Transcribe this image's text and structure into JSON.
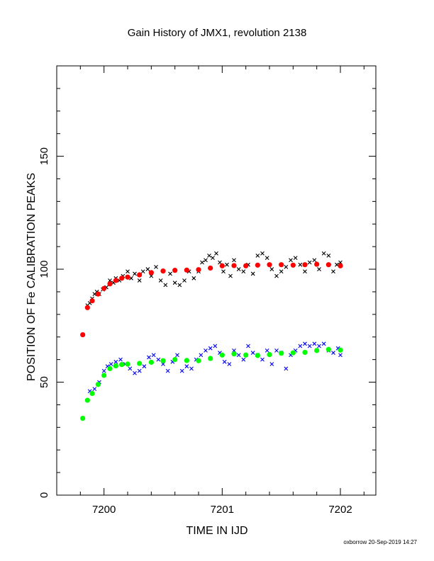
{
  "chart_data": {
    "type": "scatter",
    "title": "Gain History of JMX1, revolution 2138",
    "xlabel": "TIME IN IJD",
    "ylabel": "POSITION OF Fe CALIBRATION PEAKS",
    "footer": "oxborrow 20-Sep-2019 14:27",
    "xlim": [
      7199.6,
      7202.3
    ],
    "ylim": [
      0,
      190
    ],
    "x_ticks": [
      {
        "value": 7200,
        "label": "7200"
      },
      {
        "value": 7201,
        "label": "7201"
      },
      {
        "value": 7202,
        "label": "7202"
      }
    ],
    "y_ticks": [
      {
        "value": 0,
        "label": "0"
      },
      {
        "value": 50,
        "label": "50"
      },
      {
        "value": 100,
        "label": "100"
      },
      {
        "value": 150,
        "label": "150"
      }
    ],
    "grid": false,
    "legend": "none",
    "series": [
      {
        "color": "#000000",
        "marker": "x",
        "points": [
          [
            7199.86,
            84
          ],
          [
            7199.88,
            85
          ],
          [
            7199.9,
            87
          ],
          [
            7199.92,
            89
          ],
          [
            7199.94,
            90
          ],
          [
            7199.96,
            89
          ],
          [
            7199.99,
            91
          ],
          [
            7200.02,
            92
          ],
          [
            7200.05,
            95
          ],
          [
            7200.08,
            94
          ],
          [
            7200.1,
            96
          ],
          [
            7200.13,
            95
          ],
          [
            7200.16,
            97
          ],
          [
            7200.2,
            99
          ],
          [
            7200.23,
            96
          ],
          [
            7200.26,
            98
          ],
          [
            7200.3,
            95
          ],
          [
            7200.33,
            99
          ],
          [
            7200.37,
            100
          ],
          [
            7200.4,
            97
          ],
          [
            7200.44,
            101
          ],
          [
            7200.48,
            95
          ],
          [
            7200.52,
            93
          ],
          [
            7200.56,
            98
          ],
          [
            7200.6,
            94
          ],
          [
            7200.64,
            93
          ],
          [
            7200.68,
            95
          ],
          [
            7200.72,
            99
          ],
          [
            7200.76,
            96
          ],
          [
            7200.8,
            99
          ],
          [
            7200.83,
            103
          ],
          [
            7200.86,
            104
          ],
          [
            7200.89,
            106
          ],
          [
            7200.92,
            105
          ],
          [
            7200.95,
            107
          ],
          [
            7200.98,
            103
          ],
          [
            7201.01,
            99
          ],
          [
            7201.04,
            102
          ],
          [
            7201.07,
            97
          ],
          [
            7201.1,
            104
          ],
          [
            7201.14,
            100
          ],
          [
            7201.18,
            99
          ],
          [
            7201.22,
            102
          ],
          [
            7201.26,
            98
          ],
          [
            7201.3,
            106
          ],
          [
            7201.34,
            107
          ],
          [
            7201.38,
            105
          ],
          [
            7201.42,
            100
          ],
          [
            7201.46,
            97
          ],
          [
            7201.5,
            99
          ],
          [
            7201.54,
            101
          ],
          [
            7201.58,
            104
          ],
          [
            7201.62,
            105
          ],
          [
            7201.66,
            102
          ],
          [
            7201.7,
            99
          ],
          [
            7201.74,
            103
          ],
          [
            7201.78,
            104
          ],
          [
            7201.82,
            100
          ],
          [
            7201.86,
            107
          ],
          [
            7201.9,
            106
          ],
          [
            7201.94,
            99
          ],
          [
            7201.97,
            102
          ],
          [
            7202.0,
            103
          ]
        ]
      },
      {
        "color": "#ff0000",
        "marker": "filled",
        "points": [
          [
            7199.82,
            71
          ],
          [
            7199.86,
            83
          ],
          [
            7199.9,
            86
          ],
          [
            7199.95,
            89
          ],
          [
            7200.0,
            91.5
          ],
          [
            7200.05,
            93.5
          ],
          [
            7200.1,
            95
          ],
          [
            7200.15,
            96
          ],
          [
            7200.2,
            96.5
          ],
          [
            7200.3,
            97.5
          ],
          [
            7200.4,
            98.5
          ],
          [
            7200.5,
            99.2
          ],
          [
            7200.6,
            99.5
          ],
          [
            7200.7,
            99.6
          ],
          [
            7200.8,
            99.8
          ],
          [
            7200.9,
            100.5
          ],
          [
            7201.0,
            101.5
          ],
          [
            7201.1,
            101.6
          ],
          [
            7201.2,
            101.5
          ],
          [
            7201.3,
            101.8
          ],
          [
            7201.4,
            102
          ],
          [
            7201.5,
            102
          ],
          [
            7201.6,
            101.8
          ],
          [
            7201.7,
            102
          ],
          [
            7201.8,
            102.2
          ],
          [
            7201.9,
            102
          ],
          [
            7202.0,
            101.5
          ]
        ]
      },
      {
        "color": "#0000ff",
        "marker": "x",
        "points": [
          [
            7199.88,
            46
          ],
          [
            7199.92,
            47
          ],
          [
            7199.96,
            50
          ],
          [
            7200.0,
            55
          ],
          [
            7200.03,
            57
          ],
          [
            7200.06,
            58
          ],
          [
            7200.1,
            59
          ],
          [
            7200.14,
            60
          ],
          [
            7200.18,
            58
          ],
          [
            7200.22,
            56
          ],
          [
            7200.26,
            54
          ],
          [
            7200.3,
            55
          ],
          [
            7200.34,
            57
          ],
          [
            7200.38,
            61
          ],
          [
            7200.42,
            62
          ],
          [
            7200.46,
            60
          ],
          [
            7200.5,
            58
          ],
          [
            7200.54,
            55
          ],
          [
            7200.58,
            59
          ],
          [
            7200.62,
            62
          ],
          [
            7200.66,
            55
          ],
          [
            7200.7,
            57
          ],
          [
            7200.74,
            56
          ],
          [
            7200.78,
            60
          ],
          [
            7200.82,
            62
          ],
          [
            7200.86,
            64
          ],
          [
            7200.9,
            65
          ],
          [
            7200.94,
            66
          ],
          [
            7200.98,
            63
          ],
          [
            7201.02,
            59
          ],
          [
            7201.06,
            58
          ],
          [
            7201.1,
            64
          ],
          [
            7201.14,
            62
          ],
          [
            7201.18,
            60
          ],
          [
            7201.22,
            66
          ],
          [
            7201.26,
            63
          ],
          [
            7201.3,
            62
          ],
          [
            7201.34,
            60
          ],
          [
            7201.38,
            64
          ],
          [
            7201.42,
            58
          ],
          [
            7201.46,
            64
          ],
          [
            7201.5,
            63
          ],
          [
            7201.54,
            56
          ],
          [
            7201.58,
            62
          ],
          [
            7201.62,
            64
          ],
          [
            7201.66,
            66
          ],
          [
            7201.7,
            67
          ],
          [
            7201.74,
            66
          ],
          [
            7201.78,
            67
          ],
          [
            7201.82,
            66
          ],
          [
            7201.86,
            67
          ],
          [
            7201.9,
            64
          ],
          [
            7201.94,
            63
          ],
          [
            7201.98,
            65
          ],
          [
            7202.0,
            62
          ]
        ]
      },
      {
        "color": "#00ff00",
        "marker": "filled",
        "points": [
          [
            7199.82,
            34
          ],
          [
            7199.86,
            42
          ],
          [
            7199.9,
            45
          ],
          [
            7199.95,
            49
          ],
          [
            7200.0,
            53
          ],
          [
            7200.05,
            56
          ],
          [
            7200.1,
            57.2
          ],
          [
            7200.15,
            57.8
          ],
          [
            7200.2,
            58
          ],
          [
            7200.3,
            58.3
          ],
          [
            7200.4,
            58.8
          ],
          [
            7200.5,
            59.5
          ],
          [
            7200.6,
            60
          ],
          [
            7200.7,
            59.6
          ],
          [
            7200.8,
            59.5
          ],
          [
            7200.9,
            60.5
          ],
          [
            7201.0,
            62
          ],
          [
            7201.1,
            62.5
          ],
          [
            7201.2,
            62
          ],
          [
            7201.3,
            61.8
          ],
          [
            7201.4,
            62.2
          ],
          [
            7201.5,
            62.8
          ],
          [
            7201.6,
            63
          ],
          [
            7201.7,
            63.2
          ],
          [
            7201.8,
            64
          ],
          [
            7201.9,
            64.5
          ],
          [
            7202.0,
            64.2
          ]
        ]
      }
    ]
  }
}
